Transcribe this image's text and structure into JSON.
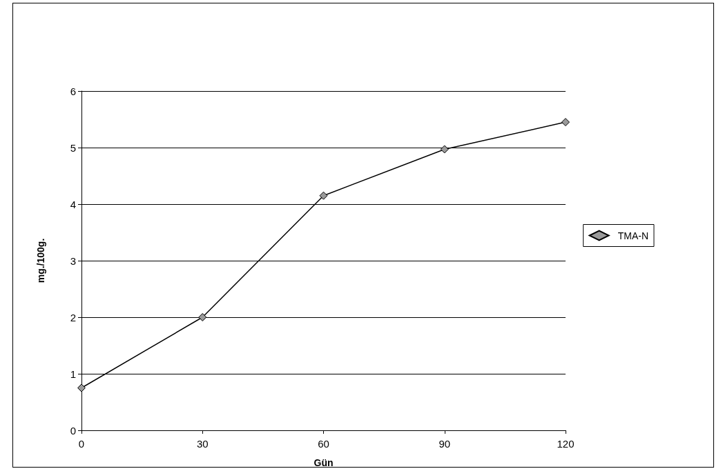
{
  "chart_data": {
    "type": "line",
    "xlabel": "Gün",
    "ylabel": "mg./100g.",
    "x": [
      0,
      30,
      60,
      90,
      120
    ],
    "series": [
      {
        "name": "TMA-N",
        "color": "#000000",
        "values": [
          0.75,
          2.0,
          4.15,
          4.97,
          5.45
        ]
      }
    ],
    "xlim": [
      0,
      120
    ],
    "xticks": [
      0,
      30,
      60,
      90,
      120
    ],
    "ylim": [
      0,
      6
    ],
    "yticks": [
      0,
      1,
      2,
      3,
      4,
      5,
      6
    ],
    "grid": "y",
    "legend": "right",
    "marker": "diamond",
    "line_style": "solid"
  }
}
